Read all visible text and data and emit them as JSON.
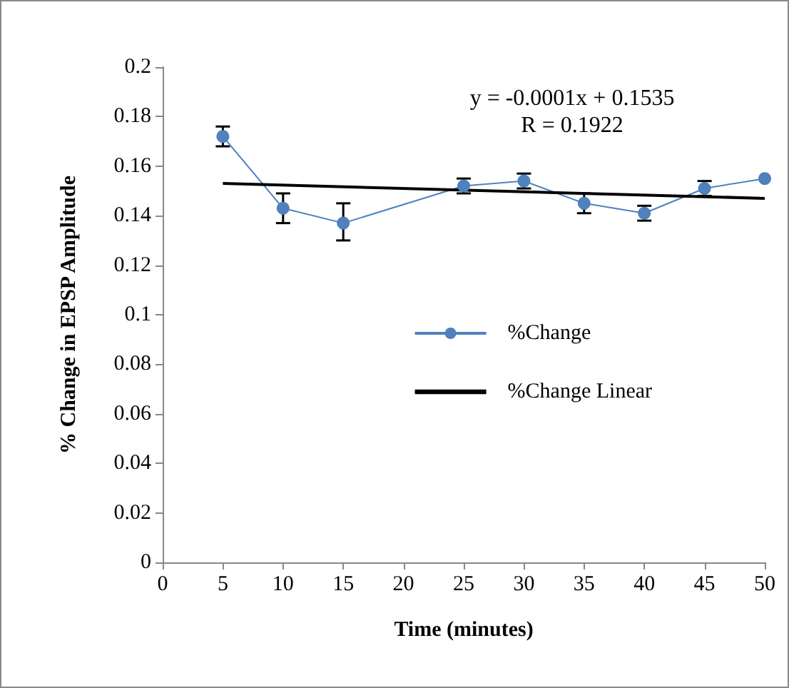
{
  "chart_data": {
    "type": "line",
    "xlabel": "Time (minutes)",
    "ylabel": "% Change in EPSP Amplitude",
    "x": [
      5,
      10,
      15,
      25,
      30,
      35,
      40,
      45,
      50
    ],
    "series": [
      {
        "name": "%Change",
        "color": "#4f81bd",
        "marker": "circle",
        "values": [
          0.172,
          0.143,
          0.137,
          0.152,
          0.154,
          0.145,
          0.141,
          0.151,
          0.155
        ],
        "errors": [
          0.004,
          [
            0.137,
            0.149
          ],
          [
            0.13,
            0.145
          ],
          0.003,
          0.003,
          0.004,
          0.003,
          0.003,
          null
        ]
      },
      {
        "name": "%Change Linear",
        "color": "#000000",
        "marker": "none",
        "x": [
          5,
          50
        ],
        "values": [
          0.153,
          0.147
        ]
      }
    ],
    "annotations": [
      "y = -0.0001x + 0.1535",
      "R = 0.1922"
    ],
    "xlim": [
      0,
      50
    ],
    "xticks": [
      0,
      5,
      10,
      15,
      20,
      25,
      30,
      35,
      40,
      45,
      50
    ],
    "ylim": [
      0,
      0.2
    ],
    "yticks": [
      0,
      0.02,
      0.04,
      0.06,
      0.08,
      0.1,
      0.12,
      0.14,
      0.16,
      0.18,
      0.2
    ],
    "grid": false,
    "legend": "right"
  }
}
